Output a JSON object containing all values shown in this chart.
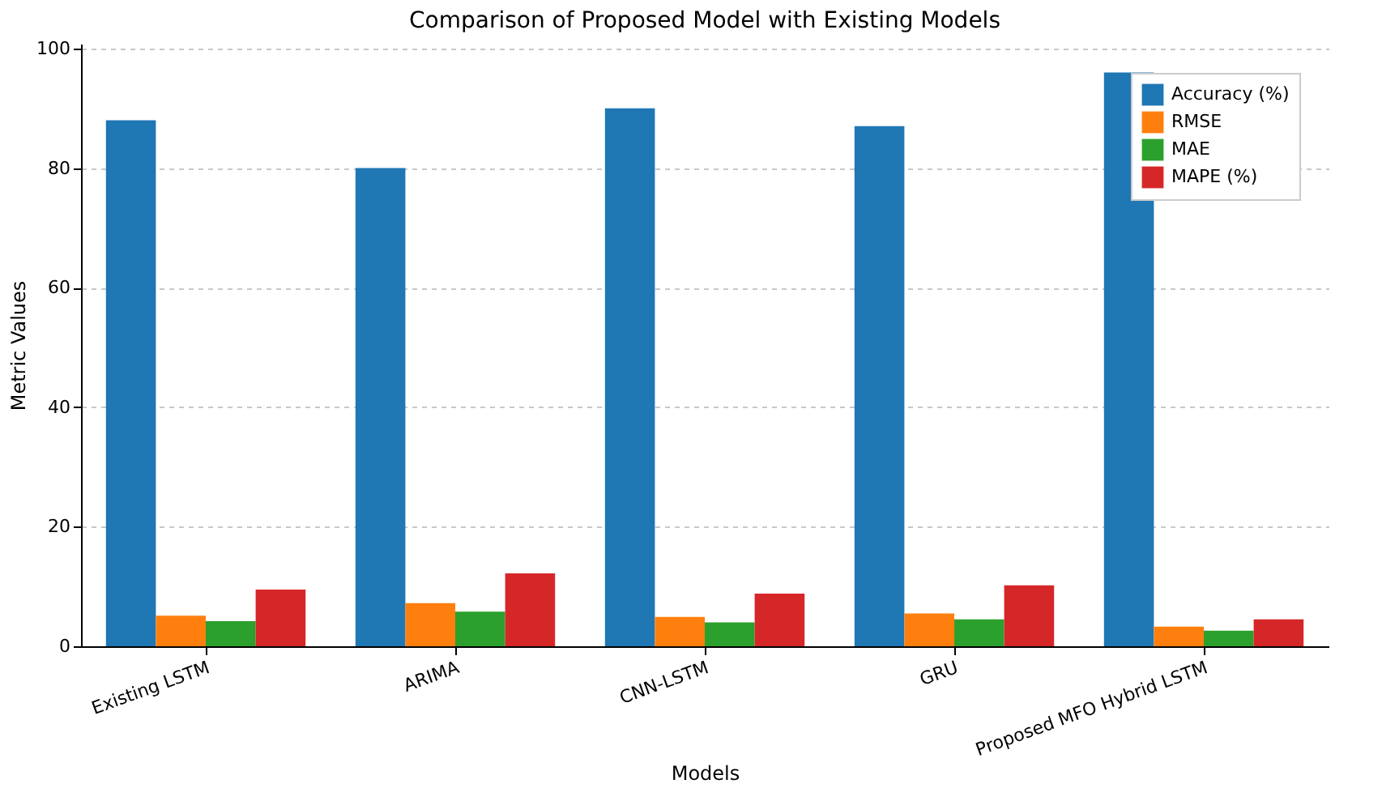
{
  "chart_data": {
    "type": "bar",
    "title": "Comparison of Proposed Model with Existing Models",
    "xlabel": "Models",
    "ylabel": "Metric Values",
    "categories": [
      "Existing LSTM",
      "ARIMA",
      "CNN-LSTM",
      "GRU",
      "Proposed MFO Hybrid LSTM"
    ],
    "series": [
      {
        "name": "Accuracy (%)",
        "color": "#1f77b4",
        "values": [
          88,
          80,
          90,
          87,
          96
        ]
      },
      {
        "name": "RMSE",
        "color": "#ff7f0e",
        "values": [
          5.1,
          7.2,
          4.9,
          5.5,
          3.3
        ]
      },
      {
        "name": "MAE",
        "color": "#2ca02c",
        "values": [
          4.2,
          5.8,
          4.0,
          4.5,
          2.6
        ]
      },
      {
        "name": "MAPE (%)",
        "color": "#d62728",
        "values": [
          9.5,
          12.2,
          8.8,
          10.2,
          4.5
        ]
      }
    ],
    "ylim": [
      0,
      100.8
    ],
    "yticks": [
      0,
      20,
      40,
      60,
      80,
      100
    ],
    "grid": "y",
    "legend": "top right"
  }
}
